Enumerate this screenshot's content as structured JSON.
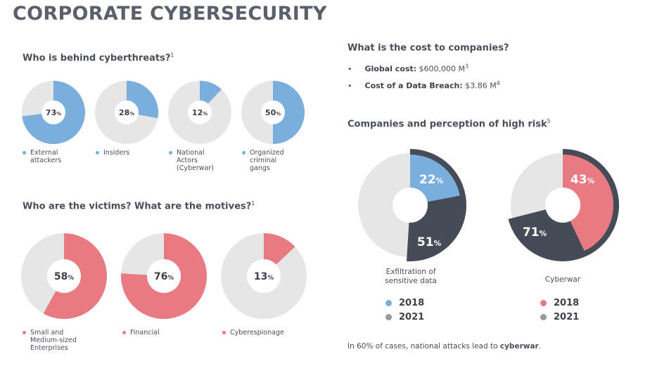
{
  "page": {
    "title": "CORPORATE CYBERSECURITY",
    "threats_title": "Who is behind cyberthreats?",
    "threats_ref": "1",
    "victims_title": "Who are the victims? What are the motives?",
    "victims_ref": "1",
    "cost_title": "What is the cost to companies?",
    "risk_title": "Companies and perception of high risk",
    "risk_ref": "5",
    "footer_prefix": "In 60% of cases, national attacks lead to ",
    "footer_bold": "cyberwar",
    "footer_suffix": "."
  },
  "cost": {
    "items": [
      {
        "label": "Global cost:",
        "value": "$600,000 M",
        "ref": "3"
      },
      {
        "label": "Cost of a Data Breach:",
        "value": "$3.86 M",
        "ref": "4"
      }
    ]
  },
  "colors": {
    "blue": "#7aaedc",
    "red": "#ea7a82",
    "dark": "#464b58",
    "gray": "#e6e6e6",
    "legend_gray": "#9a9a9a"
  },
  "chart_data": [
    {
      "type": "pie",
      "title": "Who is behind cyberthreats?",
      "style": "blue",
      "slices": [
        {
          "label": "External\nattackers",
          "value": 73,
          "display": "73%"
        },
        {
          "label": "Insiders",
          "value": 28,
          "display": "28%"
        },
        {
          "label": "National\nActors\n(Cyberwar)",
          "value": 12,
          "display": "12%"
        },
        {
          "label": "Organized\ncriminal\ngangs",
          "value": 50,
          "display": "50%"
        }
      ]
    },
    {
      "type": "pie",
      "title": "Who are the victims? What are the motives?",
      "style": "red",
      "slices": [
        {
          "label": "Small and\nMedium-sized\nEnterprises",
          "value": 58,
          "display": "58%"
        },
        {
          "label": "Financial",
          "value": 76,
          "display": "76%"
        },
        {
          "label": "Cyberespionage",
          "value": 13,
          "display": "13%"
        }
      ]
    },
    {
      "type": "pie",
      "title": "Companies and perception of high risk",
      "charts": [
        {
          "caption": "Exfiltration of\nsensitive data",
          "series": [
            {
              "name": "2018",
              "value": 22,
              "display": "22%",
              "color": "blue"
            },
            {
              "name": "2021",
              "value": 51,
              "display": "51%",
              "color": "dark"
            }
          ]
        },
        {
          "caption": "Cyberwar",
          "series": [
            {
              "name": "2018",
              "value": 43,
              "display": "43%",
              "color": "red"
            },
            {
              "name": "2021",
              "value": 71,
              "display": "71%",
              "color": "dark"
            }
          ]
        }
      ],
      "legend": [
        {
          "year": "2018",
          "color_key": "year1"
        },
        {
          "year": "2021",
          "color_key": "legend_gray"
        }
      ]
    }
  ]
}
